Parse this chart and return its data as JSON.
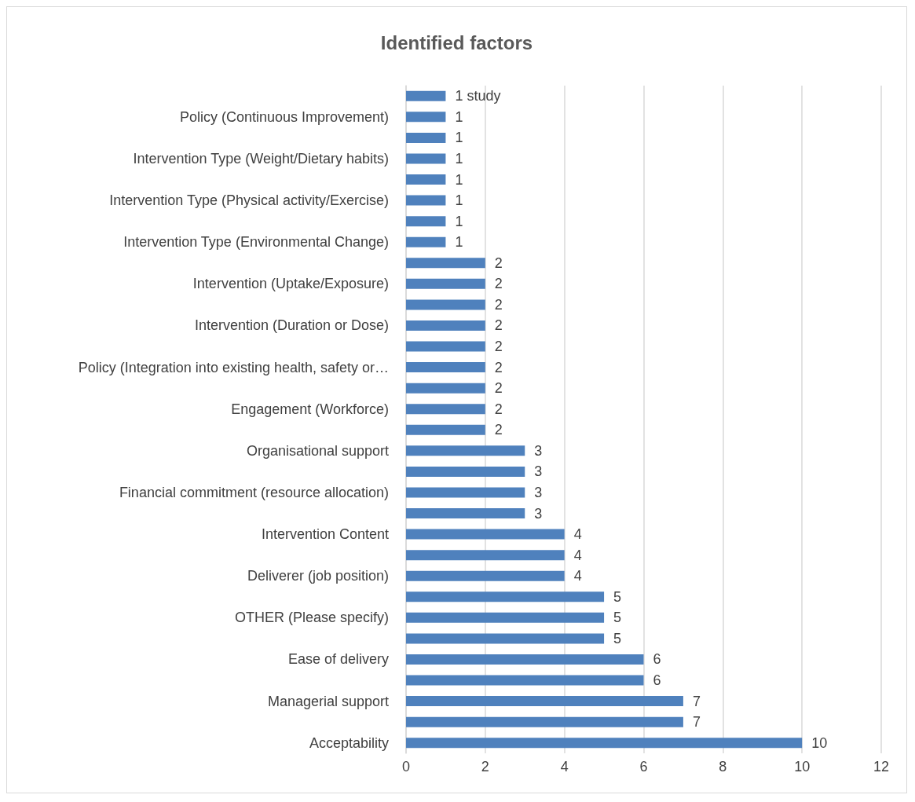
{
  "chart_data": {
    "type": "bar",
    "orientation": "horizontal",
    "title": "Identified factors",
    "categories": [
      null,
      "Policy (Continuous Improvement)",
      null,
      "Intervention Type (Weight/Dietary habits)",
      null,
      "Intervention Type (Physical activity/Exercise)",
      null,
      "Intervention Type (Environmental Change)",
      null,
      "Intervention (Uptake/Exposure)",
      null,
      "Intervention (Duration or Dose)",
      null,
      "Policy (Integration into existing health, safety or…",
      null,
      "Engagement (Workforce)",
      null,
      "Organisational support",
      null,
      "Financial commitment (resource allocation)",
      null,
      "Intervention Content",
      null,
      "Deliverer (job position)",
      null,
      "OTHER (Please specify)",
      null,
      "Ease of delivery",
      null,
      "Managerial support",
      null,
      "Acceptability"
    ],
    "values": [
      1,
      1,
      1,
      1,
      1,
      1,
      1,
      1,
      2,
      2,
      2,
      2,
      2,
      2,
      2,
      2,
      2,
      3,
      3,
      3,
      3,
      4,
      4,
      4,
      5,
      5,
      5,
      6,
      6,
      7,
      7,
      10
    ],
    "value_labels": [
      "1 study",
      "1",
      "1",
      "1",
      "1",
      "1",
      "1",
      "1",
      "2",
      "2",
      "2",
      "2",
      "2",
      "2",
      "2",
      "2",
      "2",
      "3",
      "3",
      "3",
      "3",
      "4",
      "4",
      "4",
      "5",
      "5",
      "5",
      "6",
      "6",
      "7",
      "7",
      "10"
    ],
    "color": "#4f81bd",
    "xlim": [
      0,
      12
    ],
    "xticks": [
      0,
      2,
      4,
      6,
      8,
      10,
      12
    ],
    "grid": "x"
  }
}
